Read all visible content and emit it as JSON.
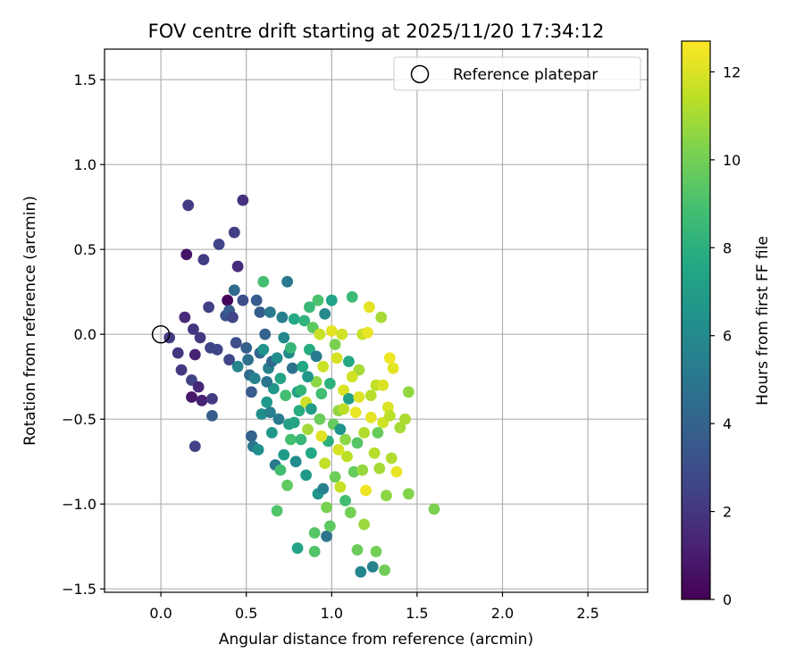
{
  "chart_data": {
    "type": "scatter",
    "title": "FOV centre drift starting at 2025/11/20 17:34:12",
    "xlabel": "Angular distance from reference (arcmin)",
    "ylabel": "Rotation from reference (arcmin)",
    "xlim": [
      -0.33,
      2.85
    ],
    "ylim": [
      -1.52,
      1.68
    ],
    "x_ticks": [
      0.0,
      0.5,
      1.0,
      1.5,
      2.0,
      2.5
    ],
    "x_tick_labels": [
      "0.0",
      "0.5",
      "1.0",
      "1.5",
      "2.0",
      "2.5"
    ],
    "y_ticks": [
      1.5,
      1.0,
      0.5,
      0.0,
      -0.5,
      -1.0,
      -1.5
    ],
    "y_tick_labels": [
      "1.5",
      "1.0",
      "0.5",
      "0.0",
      "−0.5",
      "−1.0",
      "−1.5"
    ],
    "grid": true,
    "legend": {
      "position": "top-right",
      "entries": [
        {
          "label": "Reference platepar",
          "marker": "open-circle"
        }
      ]
    },
    "reference_point": {
      "x": 0.0,
      "y": 0.0
    },
    "colorbar": {
      "label": "Hours from first FF file",
      "colormap": "viridis",
      "range": [
        0,
        12.7
      ],
      "ticks": [
        0,
        2,
        4,
        6,
        8,
        10,
        12
      ],
      "tick_labels": [
        "0",
        "2",
        "4",
        "6",
        "8",
        "10",
        "12"
      ]
    },
    "points": [
      {
        "x": 0.05,
        "y": -0.02,
        "t": 2.2
      },
      {
        "x": 0.1,
        "y": -0.11,
        "t": 2.0
      },
      {
        "x": 0.12,
        "y": -0.21,
        "t": 2.1
      },
      {
        "x": 0.14,
        "y": 0.1,
        "t": 1.5
      },
      {
        "x": 0.15,
        "y": 0.47,
        "t": 0.7
      },
      {
        "x": 0.16,
        "y": 0.76,
        "t": 2.2
      },
      {
        "x": 0.18,
        "y": -0.27,
        "t": 2.5
      },
      {
        "x": 0.18,
        "y": -0.37,
        "t": 0.8
      },
      {
        "x": 0.19,
        "y": 0.03,
        "t": 2.0
      },
      {
        "x": 0.2,
        "y": -0.12,
        "t": 1.2
      },
      {
        "x": 0.2,
        "y": -0.66,
        "t": 2.5
      },
      {
        "x": 0.22,
        "y": -0.31,
        "t": 1.4
      },
      {
        "x": 0.23,
        "y": -0.02,
        "t": 2.1
      },
      {
        "x": 0.24,
        "y": -0.39,
        "t": 1.2
      },
      {
        "x": 0.25,
        "y": 0.44,
        "t": 2.3
      },
      {
        "x": 0.28,
        "y": 0.16,
        "t": 2.4
      },
      {
        "x": 0.29,
        "y": -0.08,
        "t": 2.6
      },
      {
        "x": 0.3,
        "y": -0.48,
        "t": 3.6
      },
      {
        "x": 0.3,
        "y": -0.38,
        "t": 2.2
      },
      {
        "x": 0.33,
        "y": -0.09,
        "t": 2.6
      },
      {
        "x": 0.34,
        "y": 0.53,
        "t": 2.6
      },
      {
        "x": 0.38,
        "y": 0.11,
        "t": 3.2
      },
      {
        "x": 0.39,
        "y": 0.2,
        "t": 0.2
      },
      {
        "x": 0.4,
        "y": -0.15,
        "t": 2.7
      },
      {
        "x": 0.4,
        "y": 0.14,
        "t": 3.7
      },
      {
        "x": 0.42,
        "y": 0.1,
        "t": 2.6
      },
      {
        "x": 0.43,
        "y": 0.6,
        "t": 2.4
      },
      {
        "x": 0.44,
        "y": -0.05,
        "t": 3.0
      },
      {
        "x": 0.45,
        "y": 0.4,
        "t": 1.6
      },
      {
        "x": 0.48,
        "y": 0.79,
        "t": 1.8
      },
      {
        "x": 0.43,
        "y": 0.26,
        "t": 4.4
      },
      {
        "x": 0.45,
        "y": -0.19,
        "t": 5.8
      },
      {
        "x": 0.48,
        "y": 0.2,
        "t": 3.0
      },
      {
        "x": 0.5,
        "y": -0.08,
        "t": 3.8
      },
      {
        "x": 0.51,
        "y": -0.15,
        "t": 4.6
      },
      {
        "x": 0.52,
        "y": -0.24,
        "t": 4.4
      },
      {
        "x": 0.53,
        "y": -0.34,
        "t": 3.6
      },
      {
        "x": 0.53,
        "y": -0.6,
        "t": 3.9
      },
      {
        "x": 0.54,
        "y": -0.66,
        "t": 5.0
      },
      {
        "x": 0.55,
        "y": -0.26,
        "t": 5.5
      },
      {
        "x": 0.56,
        "y": 0.2,
        "t": 3.6
      },
      {
        "x": 0.57,
        "y": -0.68,
        "t": 6.3
      },
      {
        "x": 0.58,
        "y": 0.13,
        "t": 3.7
      },
      {
        "x": 0.58,
        "y": -0.11,
        "t": 4.1
      },
      {
        "x": 0.59,
        "y": -0.47,
        "t": 6.2
      },
      {
        "x": 0.6,
        "y": 0.31,
        "t": 8.9
      },
      {
        "x": 0.6,
        "y": -0.09,
        "t": 6.5
      },
      {
        "x": 0.61,
        "y": 0.0,
        "t": 4.0
      },
      {
        "x": 0.62,
        "y": -0.4,
        "t": 6.8
      },
      {
        "x": 0.63,
        "y": -0.2,
        "t": 5.6
      },
      {
        "x": 0.64,
        "y": 0.13,
        "t": 5.2
      },
      {
        "x": 0.64,
        "y": -0.46,
        "t": 5.5
      },
      {
        "x": 0.65,
        "y": -0.58,
        "t": 6.7
      },
      {
        "x": 0.65,
        "y": -0.16,
        "t": 4.3
      },
      {
        "x": 0.66,
        "y": -0.32,
        "t": 6.6
      },
      {
        "x": 0.67,
        "y": -0.77,
        "t": 5.1
      },
      {
        "x": 0.68,
        "y": -1.04,
        "t": 9.2
      },
      {
        "x": 0.69,
        "y": -0.5,
        "t": 5.3
      },
      {
        "x": 0.7,
        "y": -0.26,
        "t": 7.4
      },
      {
        "x": 0.7,
        "y": -0.8,
        "t": 8.8
      },
      {
        "x": 0.71,
        "y": 0.1,
        "t": 5.4
      },
      {
        "x": 0.72,
        "y": -0.02,
        "t": 5.9
      },
      {
        "x": 0.73,
        "y": -0.36,
        "t": 8.8
      },
      {
        "x": 0.74,
        "y": 0.31,
        "t": 5.1
      },
      {
        "x": 0.74,
        "y": -0.89,
        "t": 9.6
      },
      {
        "x": 0.75,
        "y": -0.53,
        "t": 7.1
      },
      {
        "x": 0.75,
        "y": -0.11,
        "t": 6.0
      },
      {
        "x": 0.76,
        "y": -0.62,
        "t": 8.9
      },
      {
        "x": 0.77,
        "y": -0.2,
        "t": 4.8
      },
      {
        "x": 0.78,
        "y": 0.09,
        "t": 7.6
      },
      {
        "x": 0.79,
        "y": -0.75,
        "t": 6.1
      },
      {
        "x": 0.8,
        "y": -1.26,
        "t": 7.3
      },
      {
        "x": 0.8,
        "y": -0.34,
        "t": 7.1
      },
      {
        "x": 0.81,
        "y": -0.45,
        "t": 7.9
      },
      {
        "x": 0.82,
        "y": -0.62,
        "t": 8.4
      },
      {
        "x": 0.83,
        "y": -0.19,
        "t": 7.6
      },
      {
        "x": 0.84,
        "y": 0.08,
        "t": 8.2
      },
      {
        "x": 0.85,
        "y": -0.83,
        "t": 6.8
      },
      {
        "x": 0.85,
        "y": -0.4,
        "t": 11.7
      },
      {
        "x": 0.86,
        "y": -0.56,
        "t": 10.9
      },
      {
        "x": 0.87,
        "y": 0.16,
        "t": 8.5
      },
      {
        "x": 0.87,
        "y": -0.09,
        "t": 7.8
      },
      {
        "x": 0.88,
        "y": -0.7,
        "t": 7.6
      },
      {
        "x": 0.89,
        "y": 0.04,
        "t": 9.5
      },
      {
        "x": 0.9,
        "y": -1.17,
        "t": 9.3
      },
      {
        "x": 0.9,
        "y": -1.28,
        "t": 9.2
      },
      {
        "x": 0.91,
        "y": -0.28,
        "t": 10.5
      },
      {
        "x": 0.92,
        "y": -0.94,
        "t": 6.6
      },
      {
        "x": 0.92,
        "y": 0.2,
        "t": 9.0
      },
      {
        "x": 0.93,
        "y": -0.5,
        "t": 9.8
      },
      {
        "x": 0.94,
        "y": -0.35,
        "t": 8.8
      },
      {
        "x": 0.95,
        "y": -0.19,
        "t": 11.7
      },
      {
        "x": 0.95,
        "y": -0.91,
        "t": 5.5
      },
      {
        "x": 0.96,
        "y": 0.12,
        "t": 5.9
      },
      {
        "x": 0.97,
        "y": -1.19,
        "t": 5.0
      },
      {
        "x": 0.98,
        "y": -0.63,
        "t": 8.0
      },
      {
        "x": 0.99,
        "y": -1.13,
        "t": 9.5
      },
      {
        "x": 1.0,
        "y": 0.02,
        "t": 12.2
      },
      {
        "x": 1.0,
        "y": 0.2,
        "t": 7.3
      },
      {
        "x": 1.01,
        "y": -0.53,
        "t": 9.7
      },
      {
        "x": 1.02,
        "y": -0.84,
        "t": 9.9
      },
      {
        "x": 1.03,
        "y": -0.14,
        "t": 11.9
      },
      {
        "x": 1.04,
        "y": -0.45,
        "t": 10.6
      },
      {
        "x": 1.05,
        "y": -0.9,
        "t": 11.6
      },
      {
        "x": 1.06,
        "y": 0.0,
        "t": 11.8
      },
      {
        "x": 1.07,
        "y": -0.33,
        "t": 12.0
      },
      {
        "x": 1.08,
        "y": -0.62,
        "t": 10.5
      },
      {
        "x": 1.09,
        "y": -0.72,
        "t": 11.4
      },
      {
        "x": 1.1,
        "y": -0.16,
        "t": 7.7
      },
      {
        "x": 1.11,
        "y": -1.05,
        "t": 10.0
      },
      {
        "x": 1.12,
        "y": 0.22,
        "t": 8.6
      },
      {
        "x": 1.13,
        "y": -0.81,
        "t": 9.7
      },
      {
        "x": 1.14,
        "y": -0.46,
        "t": 12.3
      },
      {
        "x": 1.15,
        "y": -1.27,
        "t": 9.8
      },
      {
        "x": 1.16,
        "y": -0.21,
        "t": 11.0
      },
      {
        "x": 1.17,
        "y": -1.4,
        "t": 5.8
      },
      {
        "x": 1.18,
        "y": 0.0,
        "t": 11.6
      },
      {
        "x": 1.19,
        "y": -0.58,
        "t": 11.2
      },
      {
        "x": 1.2,
        "y": -0.92,
        "t": 12.4
      },
      {
        "x": 1.21,
        "y": 0.01,
        "t": 12.3
      },
      {
        "x": 1.22,
        "y": 0.16,
        "t": 12.2
      },
      {
        "x": 1.23,
        "y": -0.36,
        "t": 11.3
      },
      {
        "x": 1.24,
        "y": -1.37,
        "t": 5.6
      },
      {
        "x": 1.25,
        "y": -0.7,
        "t": 11.3
      },
      {
        "x": 1.26,
        "y": -0.3,
        "t": 11.5
      },
      {
        "x": 1.28,
        "y": -0.79,
        "t": 11.0
      },
      {
        "x": 1.29,
        "y": 0.1,
        "t": 11.0
      },
      {
        "x": 1.3,
        "y": -0.52,
        "t": 11.8
      },
      {
        "x": 1.31,
        "y": -1.39,
        "t": 9.9
      },
      {
        "x": 1.32,
        "y": -0.95,
        "t": 10.5
      },
      {
        "x": 1.33,
        "y": -0.43,
        "t": 12.0
      },
      {
        "x": 1.34,
        "y": -0.14,
        "t": 12.4
      },
      {
        "x": 1.35,
        "y": -0.73,
        "t": 11.2
      },
      {
        "x": 1.36,
        "y": -0.2,
        "t": 12.2
      },
      {
        "x": 1.38,
        "y": -0.81,
        "t": 12.3
      },
      {
        "x": 1.4,
        "y": -0.55,
        "t": 11.0
      },
      {
        "x": 1.43,
        "y": -0.5,
        "t": 11.1
      },
      {
        "x": 1.45,
        "y": -0.34,
        "t": 10.6
      },
      {
        "x": 1.45,
        "y": -0.94,
        "t": 10.3
      },
      {
        "x": 1.6,
        "y": -1.03,
        "t": 10.2
      },
      {
        "x": 1.19,
        "y": -1.12,
        "t": 10.8
      },
      {
        "x": 1.08,
        "y": -0.98,
        "t": 8.8
      },
      {
        "x": 0.97,
        "y": -1.02,
        "t": 10.1
      },
      {
        "x": 1.26,
        "y": -1.28,
        "t": 10.0
      },
      {
        "x": 1.02,
        "y": -0.06,
        "t": 10.2
      },
      {
        "x": 1.1,
        "y": -0.38,
        "t": 7.1
      },
      {
        "x": 0.96,
        "y": -0.76,
        "t": 11.5
      },
      {
        "x": 1.05,
        "y": -0.56,
        "t": 6.5
      },
      {
        "x": 1.12,
        "y": -0.25,
        "t": 11.8
      },
      {
        "x": 0.93,
        "y": 0.0,
        "t": 11.7
      },
      {
        "x": 0.82,
        "y": -0.33,
        "t": 8.3
      },
      {
        "x": 0.72,
        "y": -0.71,
        "t": 6.9
      },
      {
        "x": 0.68,
        "y": -0.14,
        "t": 6.2
      },
      {
        "x": 0.88,
        "y": -0.44,
        "t": 7.0
      },
      {
        "x": 0.99,
        "y": -0.29,
        "t": 8.1
      },
      {
        "x": 1.15,
        "y": -0.64,
        "t": 9.3
      },
      {
        "x": 1.23,
        "y": -0.49,
        "t": 12.2
      },
      {
        "x": 1.3,
        "y": -0.3,
        "t": 12.0
      },
      {
        "x": 0.76,
        "y": -0.08,
        "t": 8.4
      },
      {
        "x": 0.86,
        "y": -0.25,
        "t": 6.7
      },
      {
        "x": 0.94,
        "y": -0.6,
        "t": 12.1
      },
      {
        "x": 1.04,
        "y": -0.68,
        "t": 11.9
      },
      {
        "x": 1.18,
        "y": -0.8,
        "t": 10.7
      },
      {
        "x": 1.27,
        "y": -0.58,
        "t": 9.7
      },
      {
        "x": 0.62,
        "y": -0.28,
        "t": 5.0
      },
      {
        "x": 0.78,
        "y": -0.52,
        "t": 7.4
      },
      {
        "x": 0.91,
        "y": -0.13,
        "t": 5.2
      },
      {
        "x": 1.07,
        "y": -0.44,
        "t": 11.4
      },
      {
        "x": 1.16,
        "y": -0.37,
        "t": 12.1
      },
      {
        "x": 1.34,
        "y": -0.48,
        "t": 11.4
      }
    ]
  }
}
